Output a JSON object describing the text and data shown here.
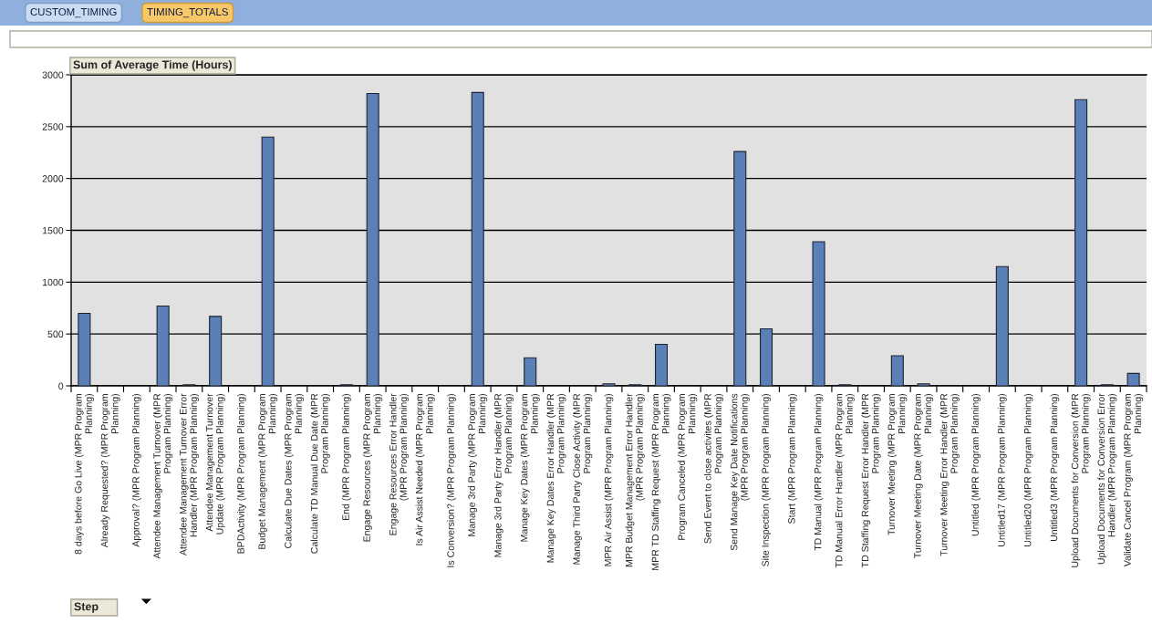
{
  "chart_data": {
    "type": "bar",
    "annotations": [
      "CUSTOM_TIMING",
      "TIMING_TOTALS"
    ],
    "ylabel": "Sum of Average Time (Hours)",
    "xlabel": "Step",
    "categories": [
      "8 days before Go Live (MPR Program\nPlanning)",
      "Already Requested? (MPR Program\nPlanning)",
      "Approval? (MPR Program Planning)",
      "Attendee Management Turnover (MPR\nProgram Planning)",
      "Attendee Management Turnover Error\nHandler (MPR Program Planning)",
      "Attendee Management Turnover\nUpdate (MPR Program Planning)",
      "BPDActivity (MPR Program Planning)",
      "Budget Management (MPR Program\nPlanning)",
      "Calculate Due Dates (MPR Program\nPlanning)",
      "Calculate TD Manual Due Date (MPR\nProgram Planning)",
      "End (MPR Program Planning)",
      "Engage Resources (MPR Program\nPlanning)",
      "Engage Resources Error Handler\n(MPR Program Planning)",
      "Is Air Assist Needed (MPR Program\nPlanning)",
      "Is Conversion? (MPR Program Planning)",
      "Manage 3rd Party (MPR Program\nPlanning)",
      "Manage 3rd Party Error Handler (MPR\nProgram Planning)",
      "Manage Key Dates (MPR Program\nPlanning)",
      "Manage Key Dates Error Handler (MPR\nProgram Planning)",
      "Manage Third Party Close Activity (MPR\nProgram Planning)",
      "MPR Air Assist (MPR Program Planning)",
      "MPR Budget Management Error Handler\n(MPR Program Planning)",
      "MPR TD Staffing Request (MPR Program\nPlanning)",
      "Program Canceled (MPR Program\nPlanning)",
      "Send Event to close activites (MPR\nProgram Planning)",
      "Send Manage Key Date Notifications\n(MPR Program Planning)",
      "Site Inspection (MPR Program Planning)",
      "Start (MPR Program Planning)",
      "TD Manual (MPR Program Planning)",
      "TD Manual Error Handler (MPR Program\nPlanning)",
      "TD Staffing Request Error Handler (MPR\nProgram Planning)",
      "Turnover Meeting (MPR Program\nPlanning)",
      "Turnover Meeting Date (MPR Program\nPlanning)",
      "Turnover Meeting Error Handler (MPR\nProgram Planning)",
      "Untitled (MPR Program Planning)",
      "Untitled17 (MPR Program Planning)",
      "Untitled20 (MPR Program Planning)",
      "Untitled3 (MPR Program Planning)",
      "Upload Documents for Conversion (MPR\nProgram Planning)",
      "Upload Documents for Conversion Error\nHandler (MPR Program Planning)",
      "Validate Cancel Program (MPR Program\nPlanning)"
    ],
    "values": [
      700,
      null,
      null,
      770,
      10,
      670,
      null,
      2400,
      null,
      null,
      10,
      2820,
      null,
      null,
      null,
      2830,
      null,
      270,
      null,
      null,
      20,
      10,
      400,
      null,
      null,
      2260,
      550,
      null,
      1390,
      10,
      null,
      290,
      20,
      null,
      null,
      1150,
      null,
      null,
      2760,
      10,
      120
    ],
    "color": "#5b7fb7",
    "ylim": [
      0,
      3000
    ],
    "yticks": [
      0,
      500,
      1000,
      1500,
      2000,
      2500,
      3000
    ],
    "grid": "y"
  }
}
